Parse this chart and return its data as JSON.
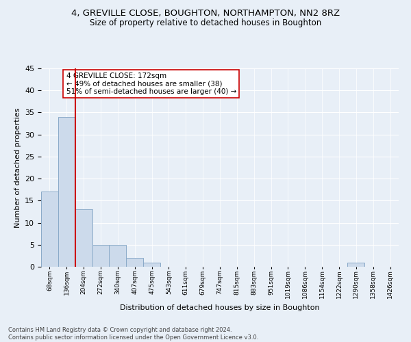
{
  "title": "4, GREVILLE CLOSE, BOUGHTON, NORTHAMPTON, NN2 8RZ",
  "subtitle": "Size of property relative to detached houses in Boughton",
  "xlabel": "Distribution of detached houses by size in Boughton",
  "ylabel": "Number of detached properties",
  "bar_values": [
    17,
    34,
    13,
    5,
    5,
    2,
    1,
    0,
    0,
    0,
    0,
    0,
    0,
    0,
    0,
    0,
    0,
    0,
    1,
    0,
    0
  ],
  "bar_labels": [
    "68sqm",
    "136sqm",
    "204sqm",
    "272sqm",
    "340sqm",
    "407sqm",
    "475sqm",
    "543sqm",
    "611sqm",
    "679sqm",
    "747sqm",
    "815sqm",
    "883sqm",
    "951sqm",
    "1019sqm",
    "1086sqm",
    "1154sqm",
    "1222sqm",
    "1290sqm",
    "1358sqm",
    "1426sqm"
  ],
  "bar_color": "#ccdaeb",
  "bar_edge_color": "#8aaac8",
  "ylim": [
    0,
    45
  ],
  "yticks": [
    0,
    5,
    10,
    15,
    20,
    25,
    30,
    35,
    40,
    45
  ],
  "vline_x": 1.5,
  "vline_color": "#cc0000",
  "annotation_text": "4 GREVILLE CLOSE: 172sqm\n← 49% of detached houses are smaller (38)\n51% of semi-detached houses are larger (40) →",
  "annotation_box_color": "#ffffff",
  "annotation_box_edge_color": "#cc0000",
  "footer_text": "Contains HM Land Registry data © Crown copyright and database right 2024.\nContains public sector information licensed under the Open Government Licence v3.0.",
  "bg_color": "#e8eff7",
  "grid_color": "#ffffff",
  "title_fontsize": 9.5,
  "subtitle_fontsize": 8.5,
  "ylabel_fontsize": 8,
  "xlabel_fontsize": 8
}
